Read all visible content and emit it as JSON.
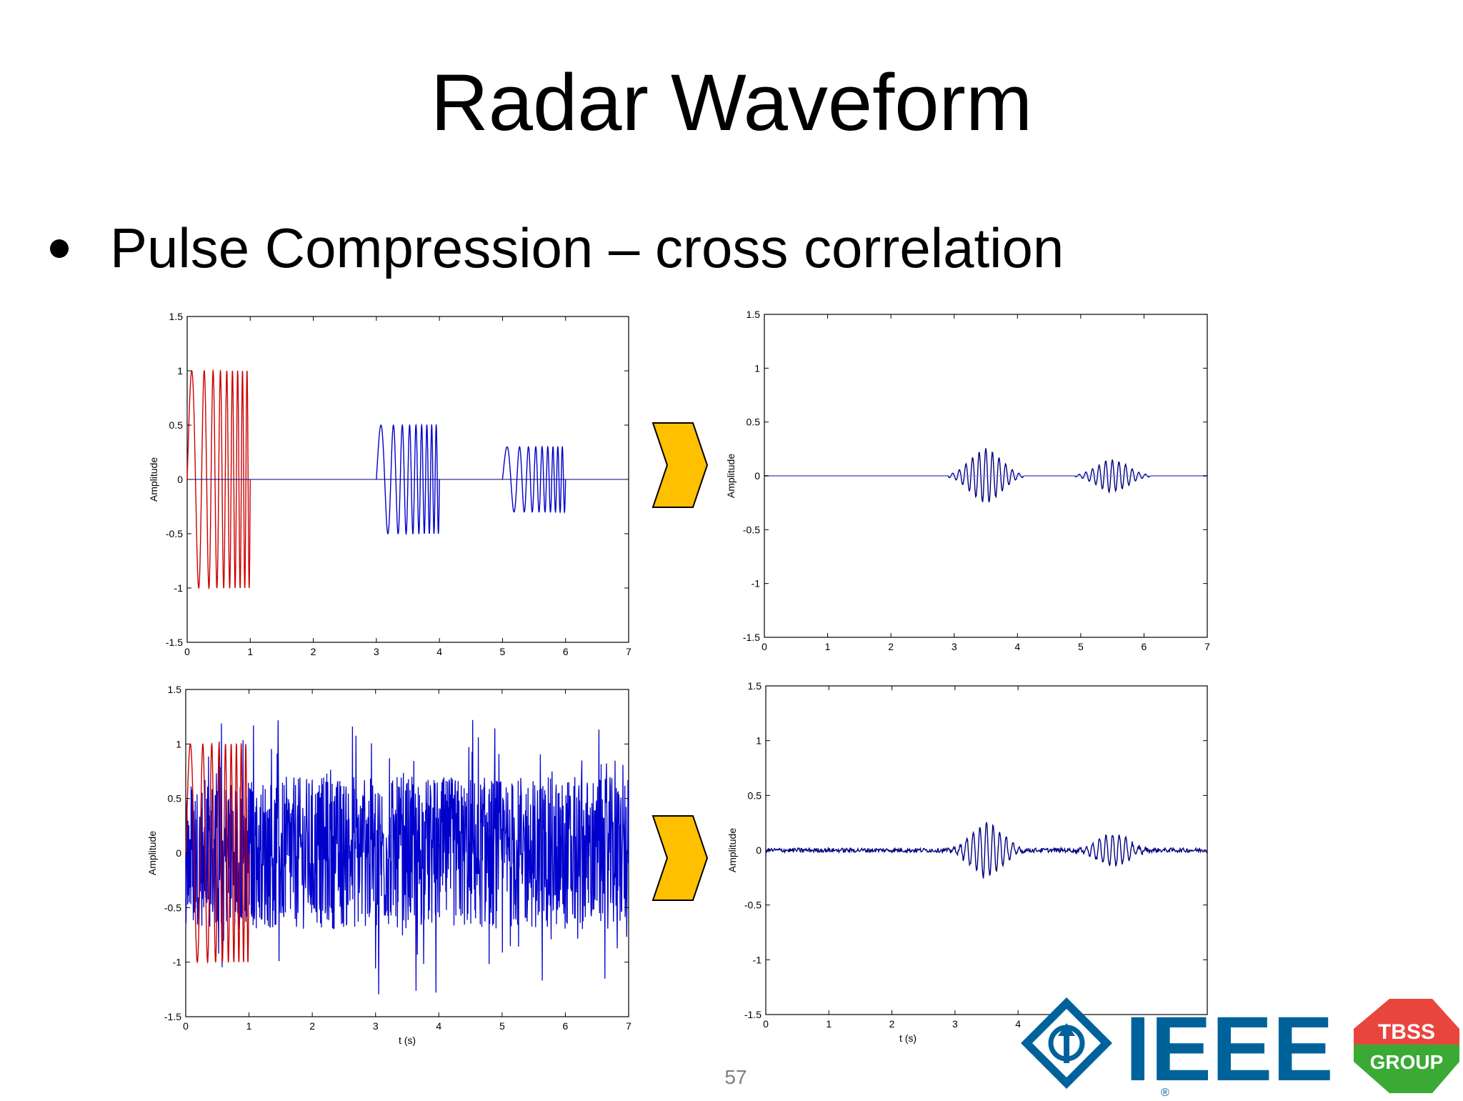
{
  "slide": {
    "title": "Radar Waveform",
    "bullet": "Pulse Compression – cross correlation",
    "page_number": "57"
  },
  "colors": {
    "transmitted": "#cc0000",
    "received": "#0000cc",
    "correlation": "#000080",
    "arrow_fill": "#ffc000",
    "ieee_blue": "#00629b",
    "tbss_red": "#e8453c",
    "tbss_green": "#3aaa35"
  },
  "logos": {
    "ieee": "IEEE",
    "ieee_mark": "®",
    "tbss_top": "TBSS",
    "tbss_bottom": "GROUP"
  },
  "icons": [
    "chevron-right-icon",
    "chevron-right-icon",
    "ieee-diamond-icon",
    "tbss-hexagon-icon"
  ],
  "chart_data": [
    {
      "type": "line",
      "ylabel": "Amplitude",
      "xlabel": "",
      "xlim": [
        0,
        7
      ],
      "ylim": [
        -1.5,
        1.5
      ],
      "x_ticks": [
        "0",
        "1",
        "2",
        "3",
        "4",
        "5",
        "6",
        "7"
      ],
      "y_ticks": [
        "1.5",
        "1",
        "0.5",
        "0",
        "-0.5",
        "-1",
        "-1.5"
      ],
      "series": [
        {
          "color": "transmitted",
          "kind": "chirp",
          "start": 0,
          "end": 1,
          "amplitude": 1
        },
        {
          "color": "received",
          "kind": "chirp",
          "start": 3,
          "end": 4,
          "amplitude": 0.5
        },
        {
          "color": "received",
          "kind": "chirp",
          "start": 5,
          "end": 6,
          "amplitude": 0.3
        }
      ]
    },
    {
      "type": "line",
      "ylabel": "Amplitude",
      "xlabel": "",
      "xlim": [
        0,
        7
      ],
      "ylim": [
        -1.5,
        1.5
      ],
      "x_ticks": [
        "0",
        "1",
        "2",
        "3",
        "4",
        "5",
        "6",
        "7"
      ],
      "y_ticks": [
        "1.5",
        "1",
        "0.5",
        "0",
        "-0.5",
        "-1",
        "-1.5"
      ],
      "series": [
        {
          "color": "correlation",
          "kind": "correlation",
          "start": 0,
          "end": 7,
          "peaks": [
            {
              "x": 3.5,
              "value": 0.25
            },
            {
              "x": 5.5,
              "value": 0.15
            }
          ],
          "noise": 0
        }
      ]
    },
    {
      "type": "line",
      "ylabel": "Amplitude",
      "xlabel": "t (s)",
      "xlim": [
        0,
        7
      ],
      "ylim": [
        -1.5,
        1.5
      ],
      "x_ticks": [
        "0",
        "1",
        "2",
        "3",
        "4",
        "5",
        "6",
        "7"
      ],
      "y_ticks": [
        "1.5",
        "1",
        "0.5",
        "0",
        "-0.5",
        "-1",
        "-1.5"
      ],
      "series": [
        {
          "color": "transmitted",
          "kind": "chirp",
          "start": 0,
          "end": 1,
          "amplitude": 1
        },
        {
          "color": "received",
          "kind": "noise",
          "start": 0,
          "end": 7,
          "amplitude": 1.5
        }
      ]
    },
    {
      "type": "line",
      "ylabel": "Amplitude",
      "xlabel": "t (s)",
      "xlim": [
        0,
        7
      ],
      "ylim": [
        -1.5,
        1.5
      ],
      "x_ticks": [
        "0",
        "1",
        "2",
        "3",
        "4"
      ],
      "y_ticks": [
        "1.5",
        "1",
        "0.5",
        "0",
        "-0.5",
        "-1",
        "-1.5"
      ],
      "series": [
        {
          "color": "correlation",
          "kind": "correlation",
          "start": 0,
          "end": 7,
          "peaks": [
            {
              "x": 3.5,
              "value": 0.25
            },
            {
              "x": 5.5,
              "value": 0.15
            }
          ],
          "noise": 0.02
        }
      ]
    }
  ]
}
